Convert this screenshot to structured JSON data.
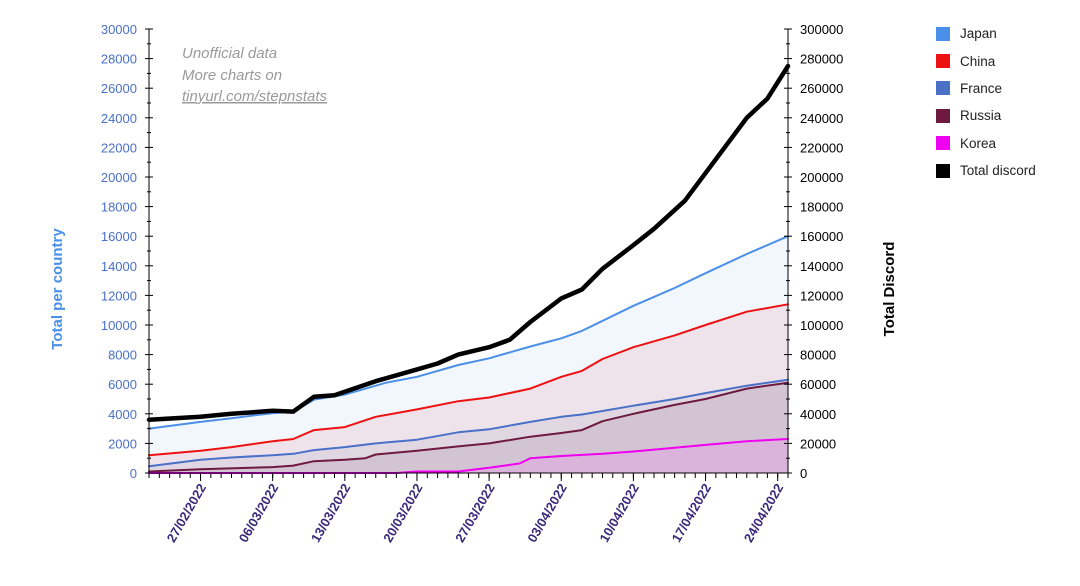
{
  "chart_data": {
    "type": "area",
    "annotation": [
      "Unofficial data",
      "More charts on",
      "tinyurl.com/stepnstats"
    ],
    "ylabel_left": "Total per country",
    "ylabel_right": "Total Discord",
    "ylim_left": [
      0,
      30000
    ],
    "ylim_right": [
      0,
      300000
    ],
    "left_ticks": [
      "0",
      "2000",
      "4000",
      "6000",
      "8000",
      "10000",
      "12000",
      "14000",
      "16000",
      "18000",
      "20000",
      "22000",
      "24000",
      "26000",
      "28000",
      "30000"
    ],
    "right_ticks": [
      "0",
      "20000",
      "40000",
      "60000",
      "80000",
      "100000",
      "120000",
      "140000",
      "160000",
      "180000",
      "200000",
      "220000",
      "240000",
      "260000",
      "280000",
      "300000"
    ],
    "x_tick_labels": [
      "27/02/2022",
      "06/03/2022",
      "13/03/2022",
      "20/03/2022",
      "27/03/2022",
      "03/04/2022",
      "10/04/2022",
      "17/04/2022",
      "24/04/2022"
    ],
    "x_start": "22/02/2022",
    "x_end": "25/04/2022",
    "legend_position": "right",
    "series": [
      {
        "name": "Japan",
        "axis": "left",
        "color": "#4a8fe8",
        "fill": "#e8effc",
        "points": [
          [
            "22/02/2022",
            3000
          ],
          [
            "27/02/2022",
            3450
          ],
          [
            "02/03/2022",
            3700
          ],
          [
            "06/03/2022",
            4050
          ],
          [
            "08/03/2022",
            4150
          ],
          [
            "10/03/2022",
            4950
          ],
          [
            "13/03/2022",
            5300
          ],
          [
            "17/03/2022",
            6100
          ],
          [
            "20/03/2022",
            6500
          ],
          [
            "24/03/2022",
            7300
          ],
          [
            "27/03/2022",
            7750
          ],
          [
            "31/03/2022",
            8550
          ],
          [
            "03/04/2022",
            9100
          ],
          [
            "05/04/2022",
            9600
          ],
          [
            "10/04/2022",
            11300
          ],
          [
            "14/04/2022",
            12500
          ],
          [
            "17/04/2022",
            13500
          ],
          [
            "21/04/2022",
            14800
          ],
          [
            "25/04/2022",
            16000
          ]
        ]
      },
      {
        "name": "China",
        "axis": "left",
        "color": "#ee1111",
        "fill": "#ecd4dc",
        "points": [
          [
            "22/02/2022",
            1200
          ],
          [
            "27/02/2022",
            1500
          ],
          [
            "02/03/2022",
            1750
          ],
          [
            "06/03/2022",
            2150
          ],
          [
            "08/03/2022",
            2300
          ],
          [
            "10/03/2022",
            2900
          ],
          [
            "13/03/2022",
            3100
          ],
          [
            "16/03/2022",
            3800
          ],
          [
            "20/03/2022",
            4300
          ],
          [
            "24/03/2022",
            4850
          ],
          [
            "27/03/2022",
            5100
          ],
          [
            "31/03/2022",
            5700
          ],
          [
            "03/04/2022",
            6500
          ],
          [
            "05/04/2022",
            6900
          ],
          [
            "07/04/2022",
            7700
          ],
          [
            "10/04/2022",
            8500
          ],
          [
            "14/04/2022",
            9300
          ],
          [
            "17/04/2022",
            10000
          ],
          [
            "21/04/2022",
            10900
          ],
          [
            "25/04/2022",
            11400
          ]
        ]
      },
      {
        "name": "France",
        "axis": "left",
        "color": "#4a70c8",
        "fill": "#d4cddd",
        "points": [
          [
            "22/02/2022",
            450
          ],
          [
            "27/02/2022",
            900
          ],
          [
            "02/03/2022",
            1050
          ],
          [
            "06/03/2022",
            1200
          ],
          [
            "08/03/2022",
            1300
          ],
          [
            "10/03/2022",
            1550
          ],
          [
            "13/03/2022",
            1750
          ],
          [
            "16/03/2022",
            2000
          ],
          [
            "20/03/2022",
            2250
          ],
          [
            "24/03/2022",
            2750
          ],
          [
            "27/03/2022",
            2950
          ],
          [
            "31/03/2022",
            3450
          ],
          [
            "03/04/2022",
            3800
          ],
          [
            "05/04/2022",
            3950
          ],
          [
            "10/04/2022",
            4550
          ],
          [
            "14/04/2022",
            5000
          ],
          [
            "17/04/2022",
            5400
          ],
          [
            "21/04/2022",
            5900
          ],
          [
            "25/04/2022",
            6300
          ]
        ]
      },
      {
        "name": "Russia",
        "axis": "left",
        "color": "#6e1a40",
        "fill": "#c8b4c8",
        "points": [
          [
            "22/02/2022",
            100
          ],
          [
            "27/02/2022",
            250
          ],
          [
            "06/03/2022",
            400
          ],
          [
            "08/03/2022",
            500
          ],
          [
            "10/03/2022",
            800
          ],
          [
            "13/03/2022",
            900
          ],
          [
            "15/03/2022",
            1000
          ],
          [
            "16/03/2022",
            1250
          ],
          [
            "20/03/2022",
            1500
          ],
          [
            "24/03/2022",
            1800
          ],
          [
            "27/03/2022",
            2000
          ],
          [
            "31/03/2022",
            2450
          ],
          [
            "03/04/2022",
            2700
          ],
          [
            "05/04/2022",
            2900
          ],
          [
            "07/04/2022",
            3500
          ],
          [
            "10/04/2022",
            4000
          ],
          [
            "14/04/2022",
            4600
          ],
          [
            "17/04/2022",
            5000
          ],
          [
            "21/04/2022",
            5700
          ],
          [
            "25/04/2022",
            6100
          ]
        ]
      },
      {
        "name": "Korea",
        "axis": "left",
        "color": "#f000f0",
        "fill": "#e0a8e0",
        "points": [
          [
            "22/02/2022",
            0
          ],
          [
            "18/03/2022",
            0
          ],
          [
            "20/03/2022",
            100
          ],
          [
            "24/03/2022",
            100
          ],
          [
            "27/03/2022",
            350
          ],
          [
            "30/03/2022",
            650
          ],
          [
            "31/03/2022",
            1000
          ],
          [
            "03/04/2022",
            1150
          ],
          [
            "07/04/2022",
            1300
          ],
          [
            "10/04/2022",
            1450
          ],
          [
            "14/04/2022",
            1700
          ],
          [
            "17/04/2022",
            1900
          ],
          [
            "21/04/2022",
            2150
          ],
          [
            "25/04/2022",
            2300
          ]
        ]
      },
      {
        "name": "Total discord",
        "axis": "right",
        "color": "#000000",
        "points": [
          [
            "22/02/2022",
            36000
          ],
          [
            "27/02/2022",
            38000
          ],
          [
            "02/03/2022",
            40000
          ],
          [
            "06/03/2022",
            42000
          ],
          [
            "08/03/2022",
            41500
          ],
          [
            "10/03/2022",
            51500
          ],
          [
            "12/03/2022",
            52500
          ],
          [
            "16/03/2022",
            62000
          ],
          [
            "20/03/2022",
            70000
          ],
          [
            "22/03/2022",
            74000
          ],
          [
            "24/03/2022",
            80000
          ],
          [
            "27/03/2022",
            85000
          ],
          [
            "29/03/2022",
            90000
          ],
          [
            "31/03/2022",
            102000
          ],
          [
            "03/04/2022",
            118000
          ],
          [
            "05/04/2022",
            124000
          ],
          [
            "07/04/2022",
            138000
          ],
          [
            "10/04/2022",
            154000
          ],
          [
            "12/04/2022",
            165000
          ],
          [
            "15/04/2022",
            184000
          ],
          [
            "18/04/2022",
            212000
          ],
          [
            "21/04/2022",
            240000
          ],
          [
            "23/04/2022",
            253000
          ],
          [
            "25/04/2022",
            275000
          ]
        ]
      }
    ]
  }
}
